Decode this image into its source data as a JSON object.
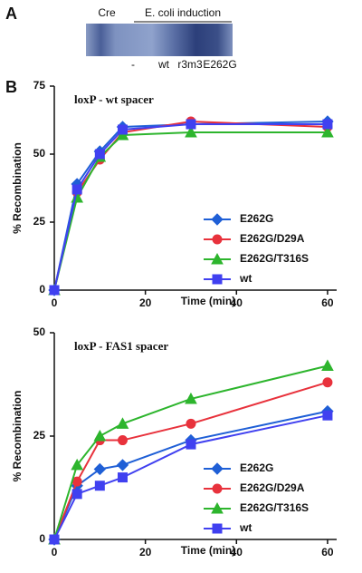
{
  "panels": {
    "a": "A",
    "b": "B"
  },
  "panel_a": {
    "lanes": [
      "Cre",
      "-",
      "wt",
      "r3m3",
      "E262G"
    ],
    "induction": "E. coli induction"
  },
  "chart_data": [
    {
      "type": "line",
      "title": "loxP - wt spacer",
      "x_label": "Time (min)",
      "y_label": "% Recombination",
      "x": [
        0,
        5,
        10,
        15,
        30,
        60
      ],
      "xlim": [
        0,
        62
      ],
      "xticks": [
        0,
        20,
        40,
        60
      ],
      "ylim": [
        0,
        75
      ],
      "yticks": [
        0,
        25,
        50,
        75
      ],
      "legend": "lower right",
      "series": [
        {
          "name": "E262G",
          "color": "#1f5fd6",
          "marker": "diamond",
          "values": [
            0,
            39,
            51,
            60,
            61,
            62
          ]
        },
        {
          "name": "E262G/D29A",
          "color": "#e8323c",
          "marker": "circle",
          "values": [
            0,
            36,
            48,
            58,
            62,
            60
          ]
        },
        {
          "name": "E262G/T316S",
          "color": "#2db52d",
          "marker": "triangle",
          "values": [
            0,
            34,
            49,
            57,
            58,
            58
          ]
        },
        {
          "name": "wt",
          "color": "#4040f0",
          "marker": "square",
          "values": [
            0,
            37,
            50,
            59,
            61,
            61
          ]
        }
      ]
    },
    {
      "type": "line",
      "title": "loxP - FAS1 spacer",
      "x_label": "Time (min)",
      "y_label": "% Recombination",
      "x": [
        0,
        5,
        10,
        15,
        30,
        60
      ],
      "xlim": [
        0,
        62
      ],
      "xticks": [
        0,
        20,
        40,
        60
      ],
      "ylim": [
        0,
        50
      ],
      "yticks": [
        0,
        25,
        50
      ],
      "legend": "lower right",
      "series": [
        {
          "name": "E262G",
          "color": "#1f5fd6",
          "marker": "diamond",
          "values": [
            0,
            13,
            17,
            18,
            24,
            31
          ]
        },
        {
          "name": "E262G/D29A",
          "color": "#e8323c",
          "marker": "circle",
          "values": [
            0,
            14,
            24,
            24,
            28,
            38
          ]
        },
        {
          "name": "E262G/T316S",
          "color": "#2db52d",
          "marker": "triangle",
          "values": [
            0,
            18,
            25,
            28,
            34,
            42
          ]
        },
        {
          "name": "wt",
          "color": "#4040f0",
          "marker": "square",
          "values": [
            0,
            11,
            13,
            15,
            23,
            30
          ]
        }
      ]
    }
  ]
}
